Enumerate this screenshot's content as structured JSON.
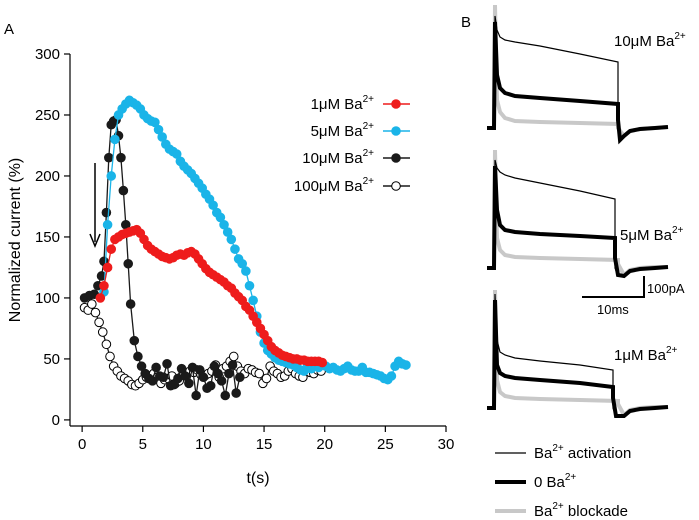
{
  "panels": {
    "a_label": "A",
    "b_label": "B"
  },
  "chart_data": {
    "type": "line",
    "xlabel": "t(s)",
    "ylabel": "Normalized current (%)",
    "xlim": [
      -1,
      30
    ],
    "ylim": [
      -5,
      300
    ],
    "xticks": [
      0,
      5,
      10,
      15,
      20,
      25,
      30
    ],
    "yticks": [
      0,
      50,
      100,
      150,
      200,
      250,
      300
    ],
    "annotation": "down arrow at t = 1 s marking Ba2+ application",
    "series": [
      {
        "name": "1μM Ba2+",
        "label_main": "1μM Ba",
        "label_sup": "2+",
        "color": "#ee1c1c",
        "marker": "filled",
        "x": [
          1.5,
          1.8,
          2.1,
          2.4,
          2.7,
          3.0,
          3.3,
          3.6,
          3.9,
          4.2,
          4.5,
          4.8,
          5.1,
          5.4,
          5.7,
          6.0,
          6.3,
          6.6,
          6.9,
          7.2,
          7.5,
          7.8,
          8.1,
          8.4,
          8.7,
          9.0,
          9.3,
          9.6,
          9.9,
          10.2,
          10.5,
          10.8,
          11.1,
          11.4,
          11.7,
          12.0,
          12.3,
          12.6,
          12.9,
          13.2,
          13.5,
          13.8,
          14.1,
          14.4,
          14.7,
          15.0,
          15.3,
          15.6,
          15.9,
          16.2,
          16.5,
          16.8,
          17.1,
          17.4,
          17.7,
          18.0,
          18.3,
          18.6,
          18.9,
          19.2,
          19.5,
          19.8
        ],
        "y": [
          100,
          110,
          125,
          140,
          148,
          150,
          152,
          153,
          154,
          155,
          156,
          153,
          148,
          143,
          140,
          138,
          136,
          134,
          133,
          132,
          133,
          135,
          136,
          135,
          137,
          138,
          136,
          132,
          128,
          124,
          121,
          119,
          117,
          115,
          113,
          110,
          108,
          104,
          101,
          98,
          93,
          90,
          85,
          80,
          75,
          70,
          65,
          60,
          57,
          55,
          53,
          52,
          51,
          50,
          50,
          49,
          49,
          48,
          48,
          48,
          48,
          47
        ]
      },
      {
        "name": "5μM Ba2+",
        "label_main": "5μM Ba",
        "label_sup": "2+",
        "color": "#1ab4e8",
        "marker": "filled",
        "x": [
          1.8,
          2.1,
          2.4,
          2.7,
          3.0,
          3.3,
          3.6,
          3.9,
          4.2,
          4.5,
          4.8,
          5.1,
          5.4,
          5.7,
          6.0,
          6.3,
          6.6,
          6.9,
          7.2,
          7.5,
          7.8,
          8.1,
          8.4,
          8.7,
          9.0,
          9.3,
          9.6,
          9.9,
          10.2,
          10.5,
          10.8,
          11.1,
          11.4,
          11.7,
          12.0,
          12.3,
          12.6,
          12.9,
          13.2,
          13.5,
          13.8,
          14.1,
          14.4,
          14.7,
          15.0,
          15.3,
          15.6,
          15.9,
          16.2,
          16.5,
          16.8,
          17.1,
          17.4,
          17.7,
          18.0,
          18.3,
          18.6,
          18.9,
          19.2,
          19.5,
          19.8,
          20.1,
          20.4,
          20.7,
          21.0,
          21.3,
          21.6,
          21.9,
          22.2,
          22.5,
          22.8,
          23.1,
          23.4,
          23.7,
          24.0,
          24.3,
          24.6,
          24.9,
          25.2,
          25.5,
          25.8,
          26.1,
          26.4,
          26.7
        ],
        "y": [
          105,
          160,
          200,
          230,
          250,
          255,
          259,
          262,
          260,
          258,
          255,
          250,
          247,
          245,
          244,
          238,
          232,
          226,
          222,
          220,
          218,
          212,
          208,
          205,
          202,
          198,
          194,
          190,
          185,
          181,
          176,
          170,
          166,
          160,
          154,
          148,
          140,
          132,
          128,
          122,
          110,
          98,
          85,
          72,
          63,
          57,
          54,
          51,
          49,
          48,
          47,
          46,
          45,
          43,
          41,
          40,
          45,
          42,
          44,
          43,
          46,
          44,
          42,
          43,
          41,
          40,
          42,
          44,
          41,
          40,
          40,
          43,
          39,
          39,
          38,
          37,
          36,
          34,
          33,
          36,
          44,
          48,
          46,
          45
        ]
      },
      {
        "name": "10μM Ba2+",
        "label_main": "10μM Ba",
        "label_sup": "2+",
        "color": "#1a1a1a",
        "marker": "filled",
        "x": [
          0.2,
          0.6,
          1.0,
          1.3,
          1.6,
          1.8,
          2.0,
          2.2,
          2.4,
          2.6,
          2.8,
          3.0,
          3.2,
          3.4,
          3.6,
          3.8,
          4.0,
          4.3,
          4.6,
          4.9,
          5.2,
          5.5,
          5.8,
          6.1,
          6.4,
          6.7,
          7.0,
          7.3,
          7.6,
          7.9,
          8.2,
          8.5,
          8.8,
          9.1,
          9.4,
          9.7,
          10.0,
          10.3,
          10.6,
          10.9,
          11.2,
          11.5,
          11.8,
          12.1,
          12.4,
          12.7,
          13.0
        ],
        "y": [
          100,
          102,
          103,
          110,
          118,
          130,
          170,
          215,
          242,
          245,
          246,
          233,
          215,
          188,
          160,
          128,
          95,
          65,
          52,
          44,
          38,
          34,
          32,
          43,
          36,
          35,
          46,
          28,
          29,
          34,
          42,
          36,
          30,
          43,
          20,
          41,
          35,
          26,
          28,
          44,
          38,
          32,
          20,
          38,
          45,
          22,
          35
        ]
      },
      {
        "name": "100μM Ba2+",
        "label_main": "100μM Ba",
        "label_sup": "2+",
        "color": "#1a1a1a",
        "marker": "open",
        "x": [
          0.2,
          0.5,
          0.8,
          1.1,
          1.4,
          1.7,
          2.0,
          2.3,
          2.6,
          2.9,
          3.2,
          3.5,
          3.8,
          4.1,
          4.4,
          4.7,
          5.0,
          5.3,
          5.6,
          5.9,
          6.2,
          6.5,
          6.8,
          7.1,
          7.4,
          7.7,
          8.0,
          8.3,
          8.6,
          8.9,
          9.2,
          9.5,
          9.8,
          10.1,
          10.4,
          10.7,
          11.0,
          11.3,
          11.6,
          11.9,
          12.2,
          12.5,
          12.8,
          13.1,
          13.4,
          13.7,
          14.0,
          14.3,
          14.6,
          14.9,
          15.2,
          15.5,
          15.8,
          16.1,
          16.4,
          16.7,
          17.0,
          17.3,
          17.6,
          17.9,
          18.2,
          18.5,
          18.8,
          19.1,
          19.4,
          19.7
        ],
        "y": [
          92,
          90,
          95,
          88,
          80,
          72,
          62,
          52,
          44,
          40,
          36,
          34,
          32,
          29,
          28,
          30,
          33,
          35,
          36,
          38,
          35,
          30,
          33,
          34,
          36,
          30,
          32,
          37,
          38,
          40,
          39,
          41,
          37,
          36,
          38,
          40,
          45,
          35,
          42,
          44,
          48,
          52,
          44,
          40,
          38,
          42,
          41,
          39,
          38,
          30,
          34,
          44,
          40,
          38,
          35,
          36,
          40,
          42,
          38,
          36,
          35,
          40,
          39,
          38,
          41,
          40
        ]
      }
    ]
  },
  "traces": [
    {
      "concentration_main": "10μM Ba",
      "concentration_sup": "2+"
    },
    {
      "concentration_main": "5μM Ba",
      "concentration_sup": "2+"
    },
    {
      "concentration_main": "1μM Ba",
      "concentration_sup": "2+"
    }
  ],
  "scalebar": {
    "current": "100pA",
    "time": "10ms"
  },
  "trace_legend": [
    {
      "main": "Ba",
      "sup": "2+",
      "rest": " activation",
      "color": "#000000",
      "weight": "thin"
    },
    {
      "main": "0 Ba",
      "sup": "2+",
      "rest": "",
      "color": "#000000",
      "weight": "thick"
    },
    {
      "main": "Ba",
      "sup": "2+",
      "rest": " blockade",
      "color": "#c8c8c8",
      "weight": "thick"
    }
  ]
}
